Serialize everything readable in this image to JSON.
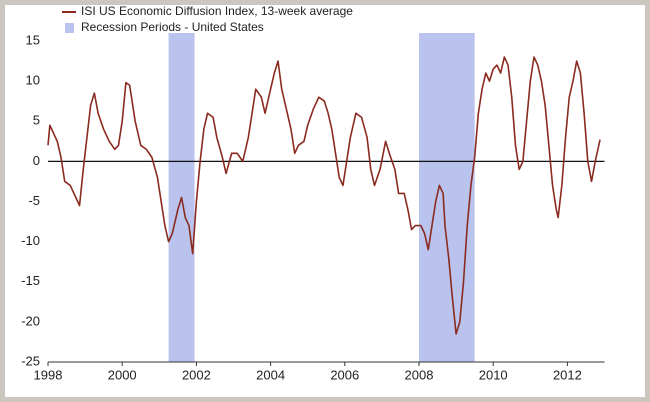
{
  "chart_data": {
    "type": "line",
    "legend": "top-left",
    "xlim": [
      1998,
      2013
    ],
    "xticks": [
      1998,
      2000,
      2002,
      2004,
      2006,
      2008,
      2010,
      2012
    ],
    "ylim": [
      -25,
      15
    ],
    "yticks": [
      -25,
      -20,
      -15,
      -10,
      -5,
      0,
      5,
      10,
      15
    ],
    "zero_line": true,
    "shaded_regions": {
      "name": "Recession Periods - United States",
      "color": "#b9c3ee",
      "ranges": [
        [
          2001.25,
          2001.95
        ],
        [
          2008.0,
          2009.5
        ]
      ]
    },
    "x": [
      1998.0,
      1998.05,
      1998.15,
      1998.25,
      1998.35,
      1998.45,
      1998.6,
      1998.75,
      1998.85,
      1998.95,
      1999.05,
      1999.15,
      1999.25,
      1999.35,
      1999.5,
      1999.65,
      1999.8,
      1999.9,
      2000.0,
      2000.1,
      2000.2,
      2000.35,
      2000.5,
      2000.65,
      2000.8,
      2000.95,
      2001.05,
      2001.15,
      2001.25,
      2001.35,
      2001.5,
      2001.6,
      2001.7,
      2001.8,
      2001.9,
      2002.0,
      2002.1,
      2002.2,
      2002.3,
      2002.45,
      2002.55,
      2002.7,
      2002.8,
      2002.95,
      2003.1,
      2003.25,
      2003.4,
      2003.5,
      2003.6,
      2003.75,
      2003.85,
      2003.95,
      2004.1,
      2004.2,
      2004.3,
      2004.45,
      2004.55,
      2004.65,
      2004.75,
      2004.9,
      2005.0,
      2005.15,
      2005.3,
      2005.45,
      2005.55,
      2005.65,
      2005.75,
      2005.85,
      2005.95,
      2006.05,
      2006.15,
      2006.3,
      2006.45,
      2006.6,
      2006.7,
      2006.8,
      2006.95,
      2007.1,
      2007.2,
      2007.35,
      2007.45,
      2007.6,
      2007.7,
      2007.8,
      2007.9,
      2008.05,
      2008.15,
      2008.25,
      2008.35,
      2008.45,
      2008.55,
      2008.65,
      2008.7,
      2008.8,
      2008.9,
      2009.0,
      2009.1,
      2009.2,
      2009.3,
      2009.4,
      2009.5,
      2009.6,
      2009.7,
      2009.8,
      2009.9,
      2010.0,
      2010.1,
      2010.2,
      2010.3,
      2010.4,
      2010.5,
      2010.6,
      2010.7,
      2010.8,
      2010.9,
      2011.0,
      2011.1,
      2011.2,
      2011.3,
      2011.4,
      2011.5,
      2011.6,
      2011.7,
      2011.75,
      2011.85,
      2011.95,
      2012.05,
      2012.15,
      2012.25,
      2012.35,
      2012.45,
      2012.55,
      2012.65,
      2012.75,
      2012.88
    ],
    "series": [
      {
        "name": "ISI US Economic Diffusion Index, 13-week average",
        "color": "#8b2a1e",
        "values": [
          2,
          4.5,
          3.5,
          2.5,
          0.5,
          -2.5,
          -3,
          -4.5,
          -5.5,
          -1,
          3,
          7,
          8.5,
          6,
          4,
          2.5,
          1.5,
          2,
          5,
          9.8,
          9.5,
          5,
          2,
          1.5,
          0.5,
          -2,
          -5,
          -8,
          -10,
          -9,
          -6,
          -4.5,
          -7,
          -8,
          -11.5,
          -5,
          0,
          4,
          6,
          5.5,
          3,
          0.5,
          -1.5,
          1,
          1,
          0,
          3,
          6,
          9,
          8,
          6,
          8,
          11,
          12.5,
          9,
          6,
          4,
          1,
          2,
          2.5,
          4.5,
          6.5,
          8,
          7.5,
          6,
          4,
          1,
          -2,
          -3,
          0,
          3,
          6,
          5.5,
          3,
          -1,
          -3,
          -1,
          2.5,
          1,
          -1,
          -4,
          -4,
          -6,
          -8.5,
          -8,
          -8,
          -9,
          -11,
          -8,
          -5,
          -3,
          -4,
          -8,
          -12,
          -17,
          -21.5,
          -20,
          -15,
          -8,
          -3,
          0.5,
          6,
          9,
          11,
          10,
          11.5,
          12,
          11,
          13,
          12,
          8,
          2,
          -1,
          0,
          5,
          10,
          13,
          12,
          10,
          7,
          2,
          -3,
          -6,
          -7,
          -3,
          3,
          8,
          10,
          12.5,
          11,
          6,
          0,
          -2.5,
          0,
          2.7
        ]
      }
    ]
  }
}
